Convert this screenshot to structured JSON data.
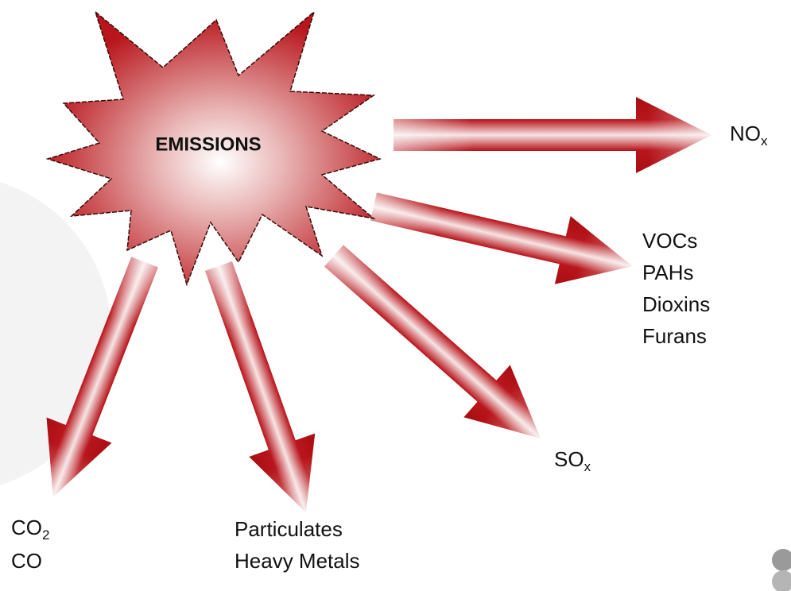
{
  "center": {
    "label": "EMISSIONS"
  },
  "outputs": [
    {
      "lines": [
        {
          "text": "NO",
          "sub": "x"
        }
      ]
    },
    {
      "lines": [
        {
          "text": "VOCs"
        },
        {
          "text": "PAHs"
        },
        {
          "text": "Dioxins"
        },
        {
          "text": "Furans"
        }
      ]
    },
    {
      "lines": [
        {
          "text": "SO",
          "sub": "x"
        }
      ]
    },
    {
      "lines": [
        {
          "text": "Particulates"
        },
        {
          "text": "Heavy Metals"
        }
      ]
    },
    {
      "lines": [
        {
          "text": "CO",
          "sub": "2"
        },
        {
          "text": "CO"
        }
      ]
    }
  ]
}
